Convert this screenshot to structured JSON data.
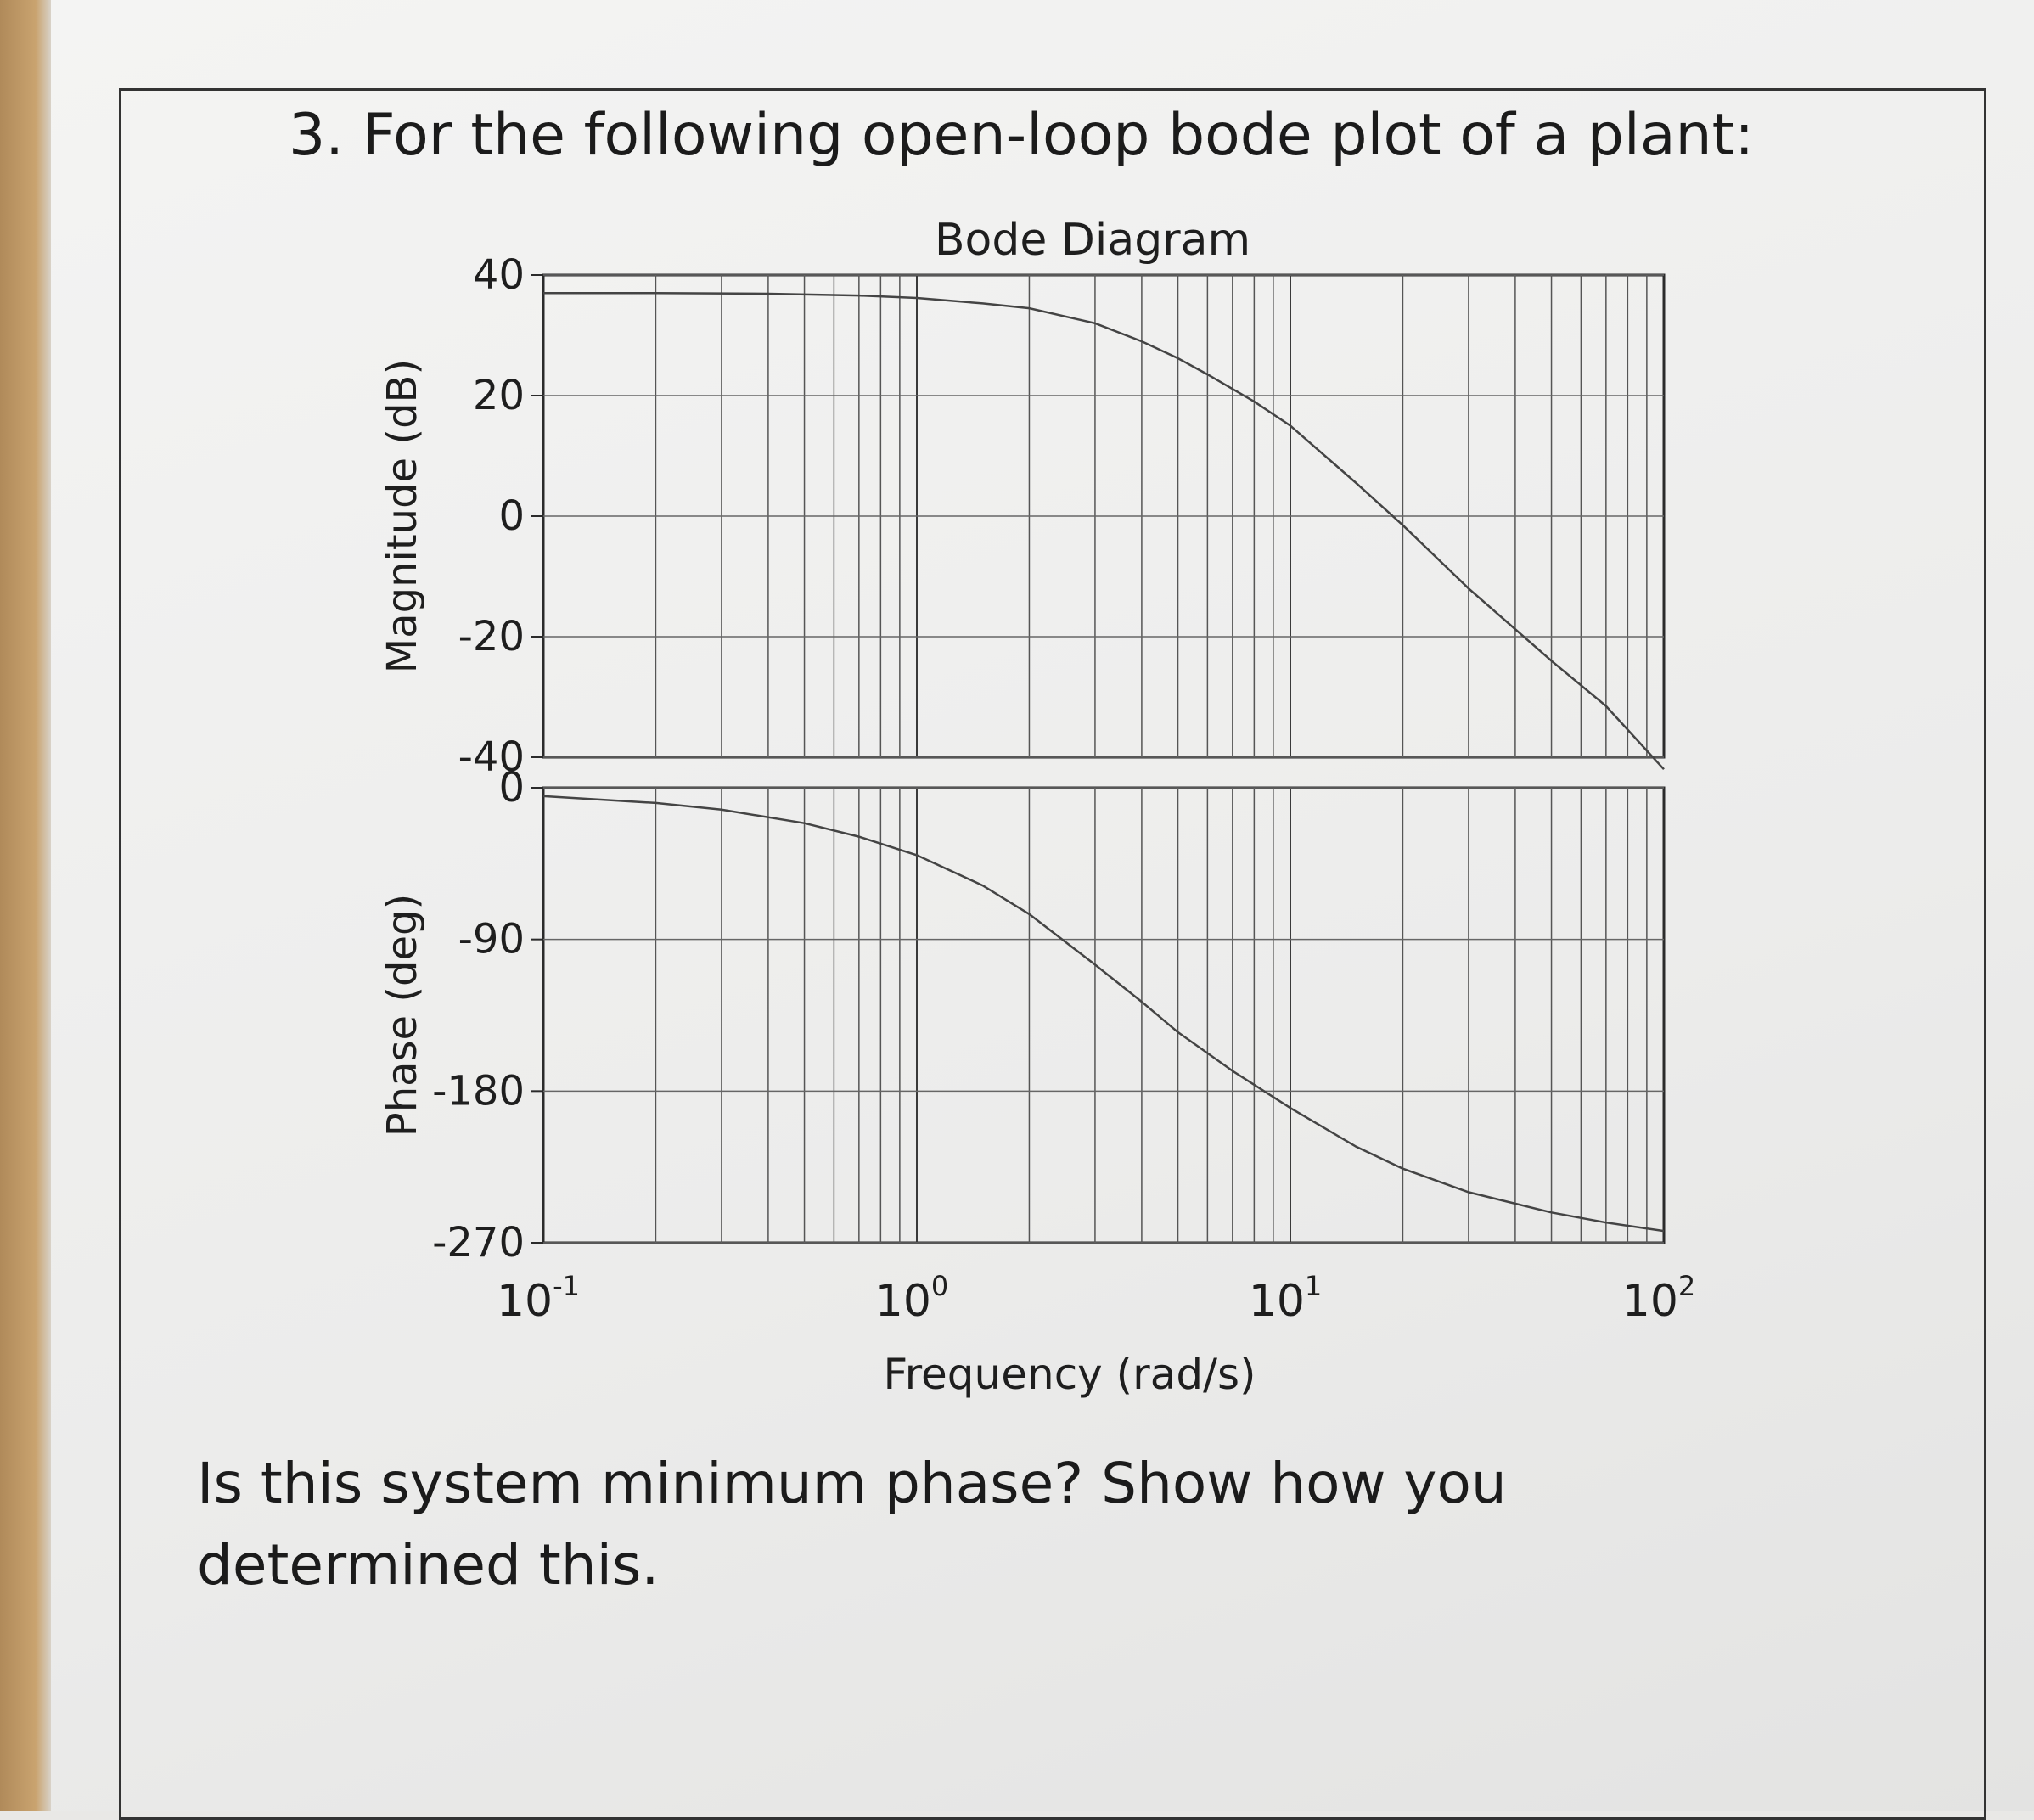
{
  "question": {
    "heading": "3. For the following open-loop bode plot of a plant:",
    "body": "Is this system minimum phase?  Show how you determined this."
  },
  "chart_data": {
    "type": "line",
    "title": "Bode Diagram",
    "xlabel": "Frequency  (rad/s)",
    "x_scale": "log",
    "xlim": [
      0.1,
      100
    ],
    "x_ticks": [
      {
        "value": 0.1,
        "base": "10",
        "exp": "-1"
      },
      {
        "value": 1,
        "base": "10",
        "exp": "0"
      },
      {
        "value": 10,
        "base": "10",
        "exp": "1"
      },
      {
        "value": 100,
        "base": "10",
        "exp": "2"
      }
    ],
    "grid": true,
    "panels": [
      {
        "name": "magnitude",
        "ylabel": "Magnitude (dB)",
        "ylim": [
          -40,
          40
        ],
        "y_ticks": [
          40,
          20,
          0,
          -20,
          -40
        ],
        "y_tick_labels": [
          "40",
          "20",
          "0",
          "-20",
          "-40"
        ],
        "series": [
          {
            "x": [
              0.1,
              0.2,
              0.4,
              0.7,
              1,
              1.5,
              2,
              3,
              4,
              5,
              6,
              8,
              10,
              15,
              20,
              30,
              50,
              70,
              100
            ],
            "y": [
              37,
              37,
              36.9,
              36.6,
              36.2,
              35.3,
              34.5,
              32,
              29,
              26.2,
              23.5,
              19,
              15,
              5.5,
              -1.5,
              -12,
              -24,
              -31.5,
              -42
            ]
          }
        ]
      },
      {
        "name": "phase",
        "ylabel": "Phase (deg)",
        "ylim": [
          -270,
          0
        ],
        "y_ticks": [
          0,
          -90,
          -180,
          -270
        ],
        "y_tick_labels": [
          "0",
          "-90",
          "-180",
          "-270"
        ],
        "series": [
          {
            "x": [
              0.1,
              0.2,
              0.3,
              0.5,
              0.7,
              1,
              1.5,
              2,
              3,
              4,
              5,
              7,
              10,
              15,
              20,
              30,
              50,
              70,
              100
            ],
            "y": [
              -5,
              -9,
              -13,
              -21,
              -29,
              -40,
              -58,
              -75,
              -105,
              -127,
              -145,
              -168,
              -190,
              -213,
              -226,
              -240,
              -252,
              -258,
              -263
            ]
          }
        ]
      }
    ]
  }
}
